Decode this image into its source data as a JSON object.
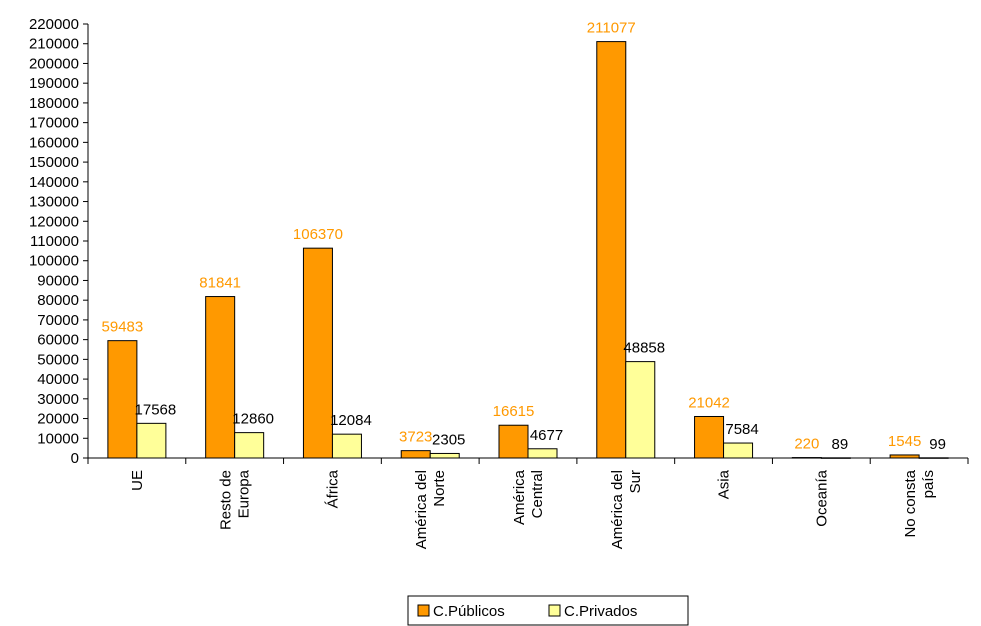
{
  "chart_data": {
    "type": "bar",
    "categories": [
      [
        "UE"
      ],
      [
        "Resto de",
        "Europa"
      ],
      [
        "África"
      ],
      [
        "América del",
        "Norte"
      ],
      [
        "América",
        "Central"
      ],
      [
        "América del",
        "Sur"
      ],
      [
        "Asia"
      ],
      [
        "Oceanía"
      ],
      [
        "No consta",
        "país"
      ]
    ],
    "series": [
      {
        "name": "C.Públicos",
        "color": "#FF9900",
        "label_color": "#FF9900",
        "values": [
          59483,
          81841,
          106370,
          3723,
          16615,
          211077,
          21042,
          220,
          1545
        ]
      },
      {
        "name": "C.Privados",
        "color": "#FFFF99",
        "label_color": "#000000",
        "values": [
          17568,
          12860,
          12084,
          2305,
          4677,
          48858,
          7584,
          89,
          99
        ]
      }
    ],
    "ylim": [
      0,
      220000
    ],
    "ytick_step": 10000,
    "grid": false,
    "legend_position": "bottom"
  }
}
